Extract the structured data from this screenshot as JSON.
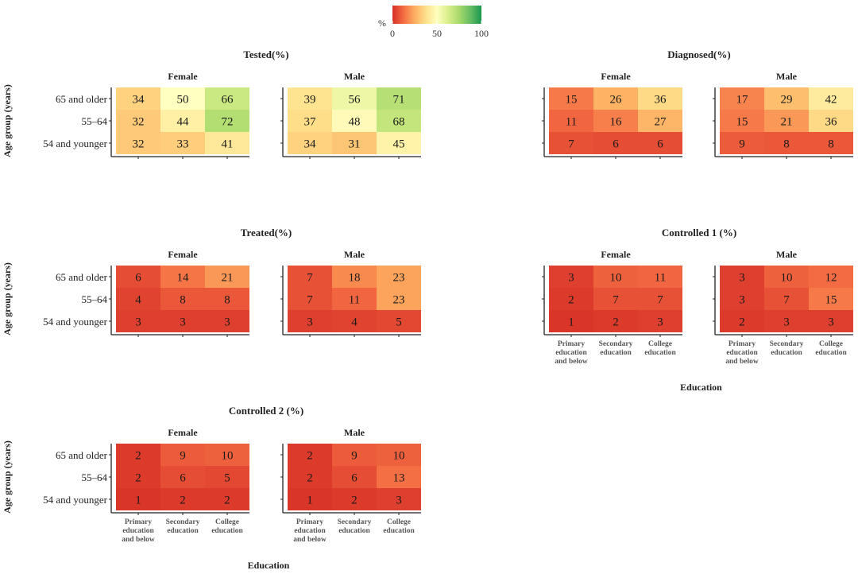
{
  "chart_data": {
    "type": "heatmap",
    "legend": {
      "title": "%",
      "ticks": [
        0,
        50,
        100
      ],
      "range": [
        0,
        100
      ],
      "colors": [
        "#d73027",
        "#f46d43",
        "#fdae61",
        "#fee08b",
        "#ffffbf",
        "#d9ef8b",
        "#a6d96a",
        "#66bd63",
        "#1a9850"
      ]
    },
    "row_labels": [
      "65 and older",
      "55–64",
      "54 and younger"
    ],
    "col_labels": [
      [
        "Primary",
        "education",
        "and below"
      ],
      [
        "Secondary",
        "education"
      ],
      [
        "College",
        "education"
      ]
    ],
    "y_axis_label": "Age group (years)",
    "x_axis_label": "Education",
    "facet_labels": [
      "Female",
      "Male"
    ],
    "panels": [
      {
        "title": "Tested(%)",
        "female": [
          [
            34,
            50,
            66
          ],
          [
            32,
            44,
            72
          ],
          [
            32,
            33,
            41
          ]
        ],
        "male": [
          [
            39,
            56,
            71
          ],
          [
            37,
            48,
            68
          ],
          [
            34,
            31,
            45
          ]
        ]
      },
      {
        "title": "Diagnosed(%)",
        "female": [
          [
            15,
            26,
            36
          ],
          [
            11,
            16,
            27
          ],
          [
            7,
            6,
            6
          ]
        ],
        "male": [
          [
            17,
            29,
            42
          ],
          [
            15,
            21,
            36
          ],
          [
            9,
            8,
            8
          ]
        ]
      },
      {
        "title": "Treated(%)",
        "female": [
          [
            6,
            14,
            21
          ],
          [
            4,
            8,
            8
          ],
          [
            3,
            3,
            3
          ]
        ],
        "male": [
          [
            7,
            18,
            23
          ],
          [
            7,
            11,
            23
          ],
          [
            3,
            4,
            5
          ]
        ]
      },
      {
        "title": "Controlled 1 (%)",
        "female": [
          [
            3,
            10,
            11
          ],
          [
            2,
            7,
            7
          ],
          [
            1,
            2,
            3
          ]
        ],
        "male": [
          [
            3,
            10,
            12
          ],
          [
            3,
            7,
            15
          ],
          [
            2,
            3,
            3
          ]
        ]
      },
      {
        "title": "Controlled 2 (%)",
        "female": [
          [
            2,
            9,
            10
          ],
          [
            2,
            6,
            5
          ],
          [
            1,
            2,
            2
          ]
        ],
        "male": [
          [
            2,
            9,
            10
          ],
          [
            2,
            6,
            13
          ],
          [
            1,
            2,
            3
          ]
        ]
      }
    ]
  }
}
